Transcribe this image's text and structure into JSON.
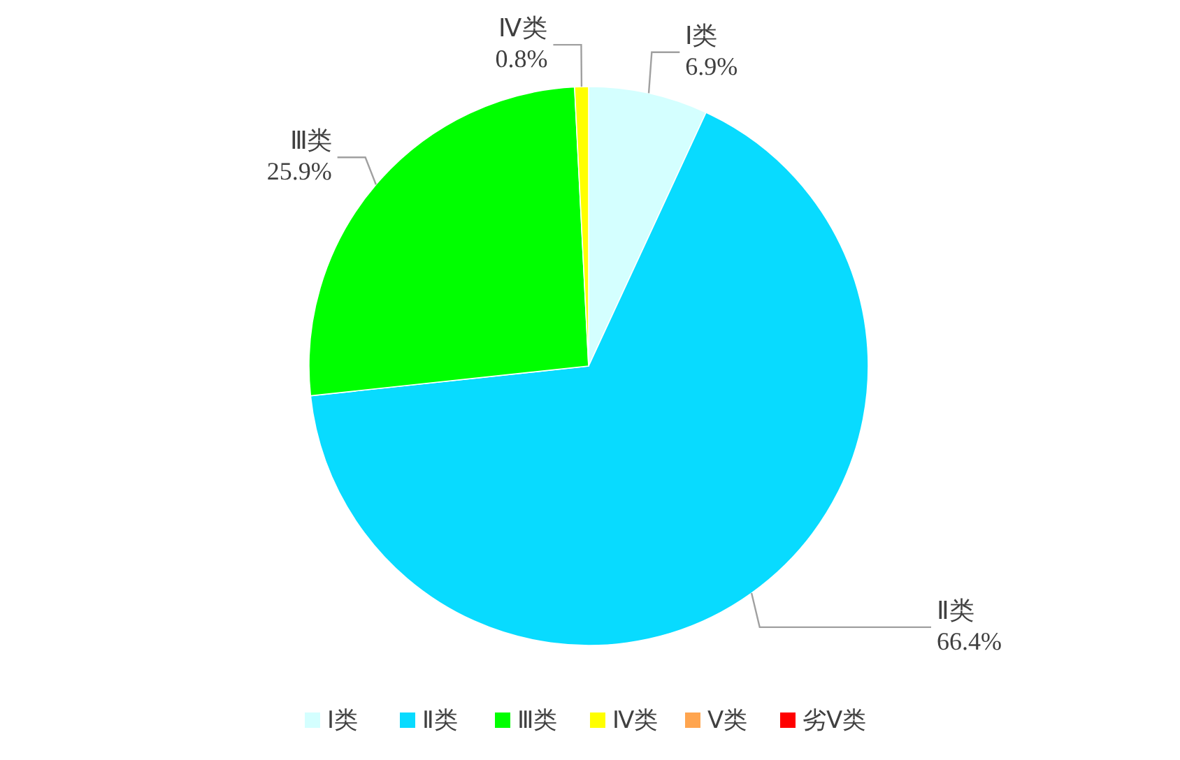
{
  "chart_data": {
    "type": "pie",
    "categories": [
      "Ⅰ类",
      "Ⅱ类",
      "Ⅲ类",
      "Ⅳ类",
      "Ⅴ类",
      "劣Ⅴ类"
    ],
    "values": [
      6.9,
      66.4,
      25.9,
      0.8,
      0,
      0
    ],
    "colors": [
      "#d4ffff",
      "#08dbff",
      "#00ff00",
      "#ffff00",
      "#ffa54f",
      "#ff0000"
    ],
    "value_labels": [
      "6.9%",
      "66.4%",
      "25.9%",
      "0.8%",
      null,
      null
    ],
    "legend": "bottom"
  }
}
